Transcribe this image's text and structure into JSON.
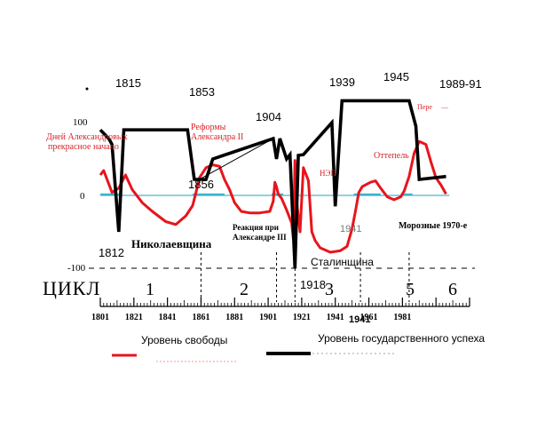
{
  "chart_data": {
    "type": "line",
    "colors": {
      "freedom": "#e8141c",
      "success": "#000000",
      "baseline": "#19a7c2",
      "annotation_red": "#d8242a",
      "grid": "#000000"
    },
    "ylim": [
      -100,
      100
    ],
    "xlim": [
      1801,
      2021
    ],
    "y_ticks": [
      {
        "value": 100,
        "label": "100"
      },
      {
        "value": 0,
        "label": "0"
      },
      {
        "value": -100,
        "label": "-100"
      }
    ],
    "x_ticks": [
      {
        "value": 1801,
        "label": "1801"
      },
      {
        "value": 1821,
        "label": "1821"
      },
      {
        "value": 1841,
        "label": "1841"
      },
      {
        "value": 1861,
        "label": "1861"
      },
      {
        "value": 1881,
        "label": "1881"
      },
      {
        "value": 1901,
        "label": "1901"
      },
      {
        "value": 1921,
        "label": "1921"
      },
      {
        "value": 1941,
        "label": "1941"
      },
      {
        "value": 1961,
        "label": "1961"
      },
      {
        "value": 1981,
        "label": "1981"
      }
    ],
    "cycles_label": "ЦИКЛ",
    "cycle_boundaries": [
      1861,
      1906,
      1917,
      1956,
      1985
    ],
    "cycles": [
      {
        "label": "1",
        "x": 1834
      },
      {
        "label": "2",
        "x": 1884
      },
      {
        "label": "3",
        "x": 1928
      },
      {
        "label": "5",
        "x": 1968
      },
      {
        "label": "6",
        "x": 1993
      }
    ],
    "series": [
      {
        "name": "Уровень свободы",
        "key": "freedom",
        "points": [
          [
            1801,
            28
          ],
          [
            1803,
            34
          ],
          [
            1805,
            22
          ],
          [
            1808,
            4
          ],
          [
            1812,
            10
          ],
          [
            1816,
            28
          ],
          [
            1820,
            8
          ],
          [
            1826,
            -10
          ],
          [
            1832,
            -22
          ],
          [
            1840,
            -36
          ],
          [
            1846,
            -40
          ],
          [
            1852,
            -28
          ],
          [
            1856,
            -14
          ],
          [
            1858,
            4
          ],
          [
            1860,
            24
          ],
          [
            1864,
            38
          ],
          [
            1868,
            42
          ],
          [
            1872,
            40
          ],
          [
            1875,
            22
          ],
          [
            1878,
            8
          ],
          [
            1881,
            -10
          ],
          [
            1885,
            -22
          ],
          [
            1890,
            -24
          ],
          [
            1896,
            -24
          ],
          [
            1902,
            -22
          ],
          [
            1904,
            -8
          ],
          [
            1905,
            18
          ],
          [
            1906,
            12
          ],
          [
            1907,
            2
          ],
          [
            1909,
            -4
          ],
          [
            1912,
            -20
          ],
          [
            1915,
            -38
          ],
          [
            1916,
            -60
          ],
          [
            1917,
            48
          ],
          [
            1918,
            -8
          ],
          [
            1920,
            -50
          ],
          [
            1922,
            38
          ],
          [
            1925,
            20
          ],
          [
            1927,
            -50
          ],
          [
            1929,
            -62
          ],
          [
            1932,
            -72
          ],
          [
            1938,
            -78
          ],
          [
            1944,
            -76
          ],
          [
            1948,
            -70
          ],
          [
            1951,
            -46
          ],
          [
            1953,
            -22
          ],
          [
            1955,
            4
          ],
          [
            1957,
            12
          ],
          [
            1962,
            18
          ],
          [
            1965,
            20
          ],
          [
            1968,
            10
          ],
          [
            1972,
            -2
          ],
          [
            1976,
            -6
          ],
          [
            1980,
            -2
          ],
          [
            1982,
            6
          ],
          [
            1985,
            26
          ],
          [
            1988,
            58
          ],
          [
            1991,
            74
          ],
          [
            1995,
            70
          ],
          [
            1998,
            46
          ],
          [
            2001,
            24
          ],
          [
            2004,
            14
          ],
          [
            2007,
            2
          ]
        ]
      },
      {
        "name": "Уровень государственного успеха",
        "key": "success",
        "points": [
          [
            1801,
            90
          ],
          [
            1806,
            78
          ],
          [
            1808,
            70
          ],
          [
            1812,
            -50
          ],
          [
            1815,
            90
          ],
          [
            1830,
            90
          ],
          [
            1853,
            90
          ],
          [
            1857,
            22
          ],
          [
            1864,
            22
          ],
          [
            1868,
            50
          ],
          [
            1904,
            78
          ],
          [
            1906,
            50
          ],
          [
            1908,
            78
          ],
          [
            1912,
            50
          ],
          [
            1914,
            56
          ],
          [
            1917,
            -100
          ],
          [
            1919,
            55
          ],
          [
            1922,
            56
          ],
          [
            1939,
            100
          ],
          [
            1941,
            -15
          ],
          [
            1945,
            130
          ],
          [
            1985,
            130
          ],
          [
            1989,
            95
          ],
          [
            1991,
            22
          ],
          [
            2007,
            26
          ]
        ]
      }
    ],
    "baseline_segments": [
      [
        1801,
        1814
      ],
      [
        1856,
        1875
      ],
      [
        1903,
        1910
      ],
      [
        1952,
        1968
      ],
      [
        1980,
        1987
      ]
    ],
    "labels": {
      "1812": "1812",
      "1815": "1815",
      "1853": "1853",
      "1856": "1856",
      "1904": "1904",
      "1918": "1918",
      "1939": "1939",
      "1941_black": "1941",
      "1941_grey": "1941",
      "1945": "1945",
      "1989_91": "1989-91",
      "days_line1": "Дней Александровых",
      "days_line2": "прекрасное начало",
      "reforms_line1": "Реформы",
      "reforms_line2": "Александра II",
      "nikolaevshchina": "Николаевщина",
      "reaction_line1": "Реакция при",
      "reaction_line2": "Александре III",
      "nep": "НЭП",
      "ottepel": "Оттепель",
      "stalinshchina": "Сталинщина",
      "morozy": "Морозные 1970-е",
      "pere": "Пере",
      "pere_dots": "...."
    },
    "legend": [
      {
        "key": "freedom",
        "text": "Уровень свободы",
        "placement": "bottom-left"
      },
      {
        "key": "success",
        "text": "Уровень государственного успеха",
        "placement": "bottom-right"
      }
    ]
  }
}
